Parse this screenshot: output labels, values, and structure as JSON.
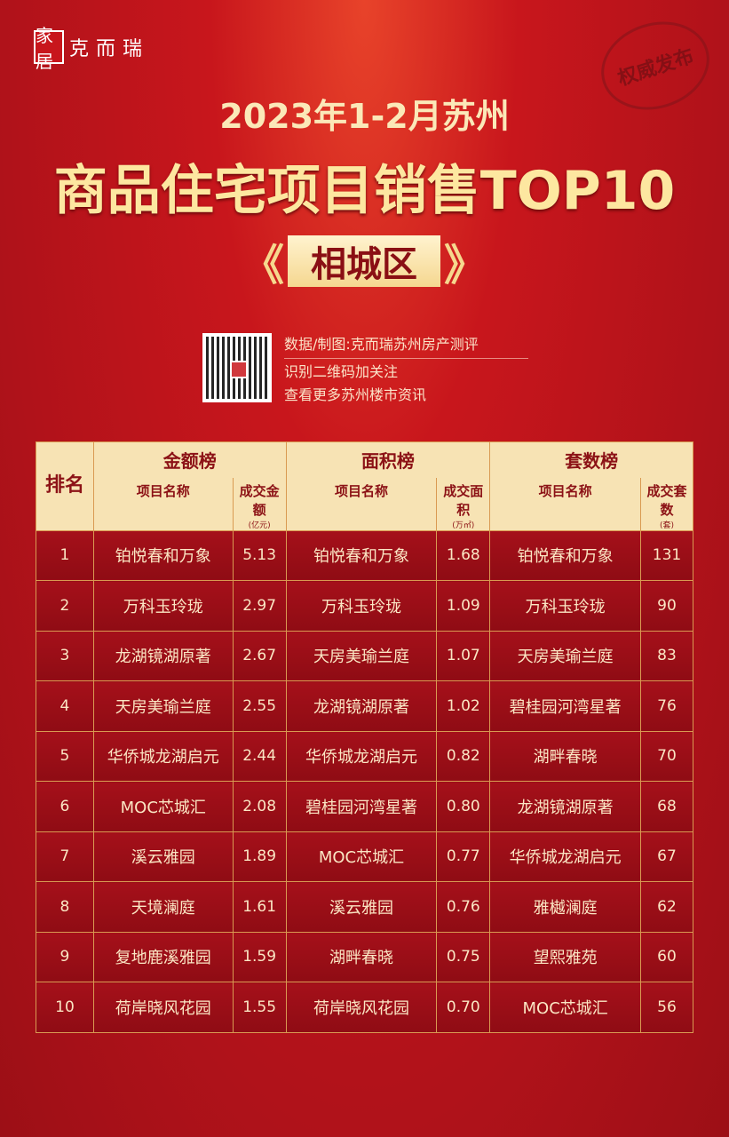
{
  "brand": {
    "logo_mark": "家居",
    "name": "克而瑞"
  },
  "stamp": "权威发布",
  "title_line1": "2023年1-2月苏州",
  "title_line2": "商品住宅项目销售TOP10",
  "district": "相城区",
  "source": {
    "line1": "数据/制图:克而瑞苏州房产测评",
    "line2": "识别二维码加关注",
    "line3": "查看更多苏州楼市资讯"
  },
  "colors": {
    "background": "#b0121a",
    "header_bg": "#f7e3b4",
    "gold_text": "#fde7a0"
  },
  "table": {
    "rank_header": "排名",
    "groups": [
      {
        "title": "金额榜",
        "name_col": "项目名称",
        "value_col": "成交金额",
        "unit": "(亿元)"
      },
      {
        "title": "面积榜",
        "name_col": "项目名称",
        "value_col": "成交面积",
        "unit": "(万㎡)"
      },
      {
        "title": "套数榜",
        "name_col": "项目名称",
        "value_col": "成交套数",
        "unit": "(套)"
      }
    ],
    "rows": [
      {
        "rank": "1",
        "a_name": "铂悦春和万象",
        "a_val": "5.13",
        "b_name": "铂悦春和万象",
        "b_val": "1.68",
        "c_name": "铂悦春和万象",
        "c_val": "131"
      },
      {
        "rank": "2",
        "a_name": "万科玉玲珑",
        "a_val": "2.97",
        "b_name": "万科玉玲珑",
        "b_val": "1.09",
        "c_name": "万科玉玲珑",
        "c_val": "90"
      },
      {
        "rank": "3",
        "a_name": "龙湖镜湖原著",
        "a_val": "2.67",
        "b_name": "天房美瑜兰庭",
        "b_val": "1.07",
        "c_name": "天房美瑜兰庭",
        "c_val": "83"
      },
      {
        "rank": "4",
        "a_name": "天房美瑜兰庭",
        "a_val": "2.55",
        "b_name": "龙湖镜湖原著",
        "b_val": "1.02",
        "c_name": "碧桂园河湾星著",
        "c_val": "76"
      },
      {
        "rank": "5",
        "a_name": "华侨城龙湖启元",
        "a_val": "2.44",
        "b_name": "华侨城龙湖启元",
        "b_val": "0.82",
        "c_name": "湖畔春晓",
        "c_val": "70"
      },
      {
        "rank": "6",
        "a_name": "MOC芯城汇",
        "a_val": "2.08",
        "b_name": "碧桂园河湾星著",
        "b_val": "0.80",
        "c_name": "龙湖镜湖原著",
        "c_val": "68"
      },
      {
        "rank": "7",
        "a_name": "溪云雅园",
        "a_val": "1.89",
        "b_name": "MOC芯城汇",
        "b_val": "0.77",
        "c_name": "华侨城龙湖启元",
        "c_val": "67"
      },
      {
        "rank": "8",
        "a_name": "天境澜庭",
        "a_val": "1.61",
        "b_name": "溪云雅园",
        "b_val": "0.76",
        "c_name": "雅樾澜庭",
        "c_val": "62"
      },
      {
        "rank": "9",
        "a_name": "复地鹿溪雅园",
        "a_val": "1.59",
        "b_name": "湖畔春晓",
        "b_val": "0.75",
        "c_name": "望熙雅苑",
        "c_val": "60"
      },
      {
        "rank": "10",
        "a_name": "荷岸晓风花园",
        "a_val": "1.55",
        "b_name": "荷岸晓风花园",
        "b_val": "0.70",
        "c_name": "MOC芯城汇",
        "c_val": "56"
      }
    ]
  }
}
